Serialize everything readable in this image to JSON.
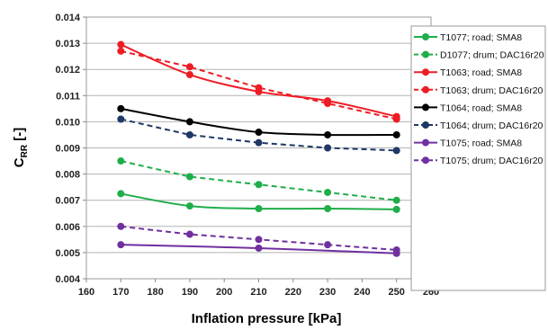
{
  "chart_data": {
    "type": "line",
    "xlabel": "Inflation pressure [kPa]",
    "ylabel": {
      "main": "C",
      "sub": "RR",
      "rest": " [-]"
    },
    "xlim": [
      160,
      260
    ],
    "ylim": [
      0.004,
      0.014
    ],
    "xticks": [
      160,
      170,
      180,
      190,
      200,
      210,
      220,
      230,
      240,
      250,
      260
    ],
    "xtick_labels": [
      "160",
      "170",
      "180",
      "190",
      "200",
      "210",
      "220",
      "230",
      "240",
      "250",
      "260"
    ],
    "yticks": [
      0.004,
      0.005,
      0.006,
      0.007,
      0.008,
      0.009,
      0.01,
      0.011,
      0.012,
      0.013,
      0.014
    ],
    "ytick_labels": [
      "0.004",
      "0.005",
      "0.006",
      "0.007",
      "0.008",
      "0.009",
      "0.010",
      "0.011",
      "0.012",
      "0.013",
      "0.014"
    ],
    "grid": "horizontal",
    "legend_position": "right",
    "series": [
      {
        "name": "T1077; road; SMA8",
        "color": "#1fae4b",
        "dashed": false,
        "smooth": true,
        "x": [
          170,
          190,
          210,
          230,
          250
        ],
        "y": [
          0.00725,
          0.00678,
          0.00668,
          0.00668,
          0.00665
        ]
      },
      {
        "name": "D1077; drum; DAC16r20",
        "color": "#1fae4b",
        "dashed": true,
        "smooth": false,
        "x": [
          170,
          190,
          210,
          230,
          250
        ],
        "y": [
          0.0085,
          0.0079,
          0.0076,
          0.0073,
          0.007
        ]
      },
      {
        "name": "T1063; road; SMA8",
        "color": "#ee1c24",
        "dashed": false,
        "smooth": true,
        "x": [
          170,
          190,
          210,
          230,
          250
        ],
        "y": [
          0.01295,
          0.0118,
          0.01115,
          0.0108,
          0.0102
        ]
      },
      {
        "name": "T1063; drum; DAC16r20",
        "color": "#ee1c24",
        "dashed": true,
        "smooth": false,
        "x": [
          170,
          190,
          210,
          230,
          250
        ],
        "y": [
          0.0127,
          0.0121,
          0.0113,
          0.0107,
          0.0101
        ]
      },
      {
        "name": "T1064; road;  SMA8",
        "color": "#000000",
        "dashed": false,
        "smooth": true,
        "x": [
          170,
          190,
          210,
          230,
          250
        ],
        "y": [
          0.0105,
          0.01,
          0.0096,
          0.0095,
          0.0095
        ]
      },
      {
        "name": "T1064; drum; DAC16r20",
        "color": "#1f3864",
        "dashed": true,
        "smooth": false,
        "x": [
          170,
          190,
          210,
          230,
          250
        ],
        "y": [
          0.0101,
          0.0095,
          0.0092,
          0.009,
          0.0089
        ]
      },
      {
        "name": "T1075; road; SMA8",
        "color": "#7030a0",
        "dashed": false,
        "smooth": true,
        "x": [
          170,
          210,
          250
        ],
        "y": [
          0.0053,
          0.00517,
          0.00497
        ]
      },
      {
        "name": "T1075; drum; DAC16r20",
        "color": "#7030a0",
        "dashed": true,
        "smooth": false,
        "x": [
          170,
          190,
          210,
          230,
          250
        ],
        "y": [
          0.006,
          0.0057,
          0.0055,
          0.0053,
          0.0051
        ]
      }
    ]
  }
}
